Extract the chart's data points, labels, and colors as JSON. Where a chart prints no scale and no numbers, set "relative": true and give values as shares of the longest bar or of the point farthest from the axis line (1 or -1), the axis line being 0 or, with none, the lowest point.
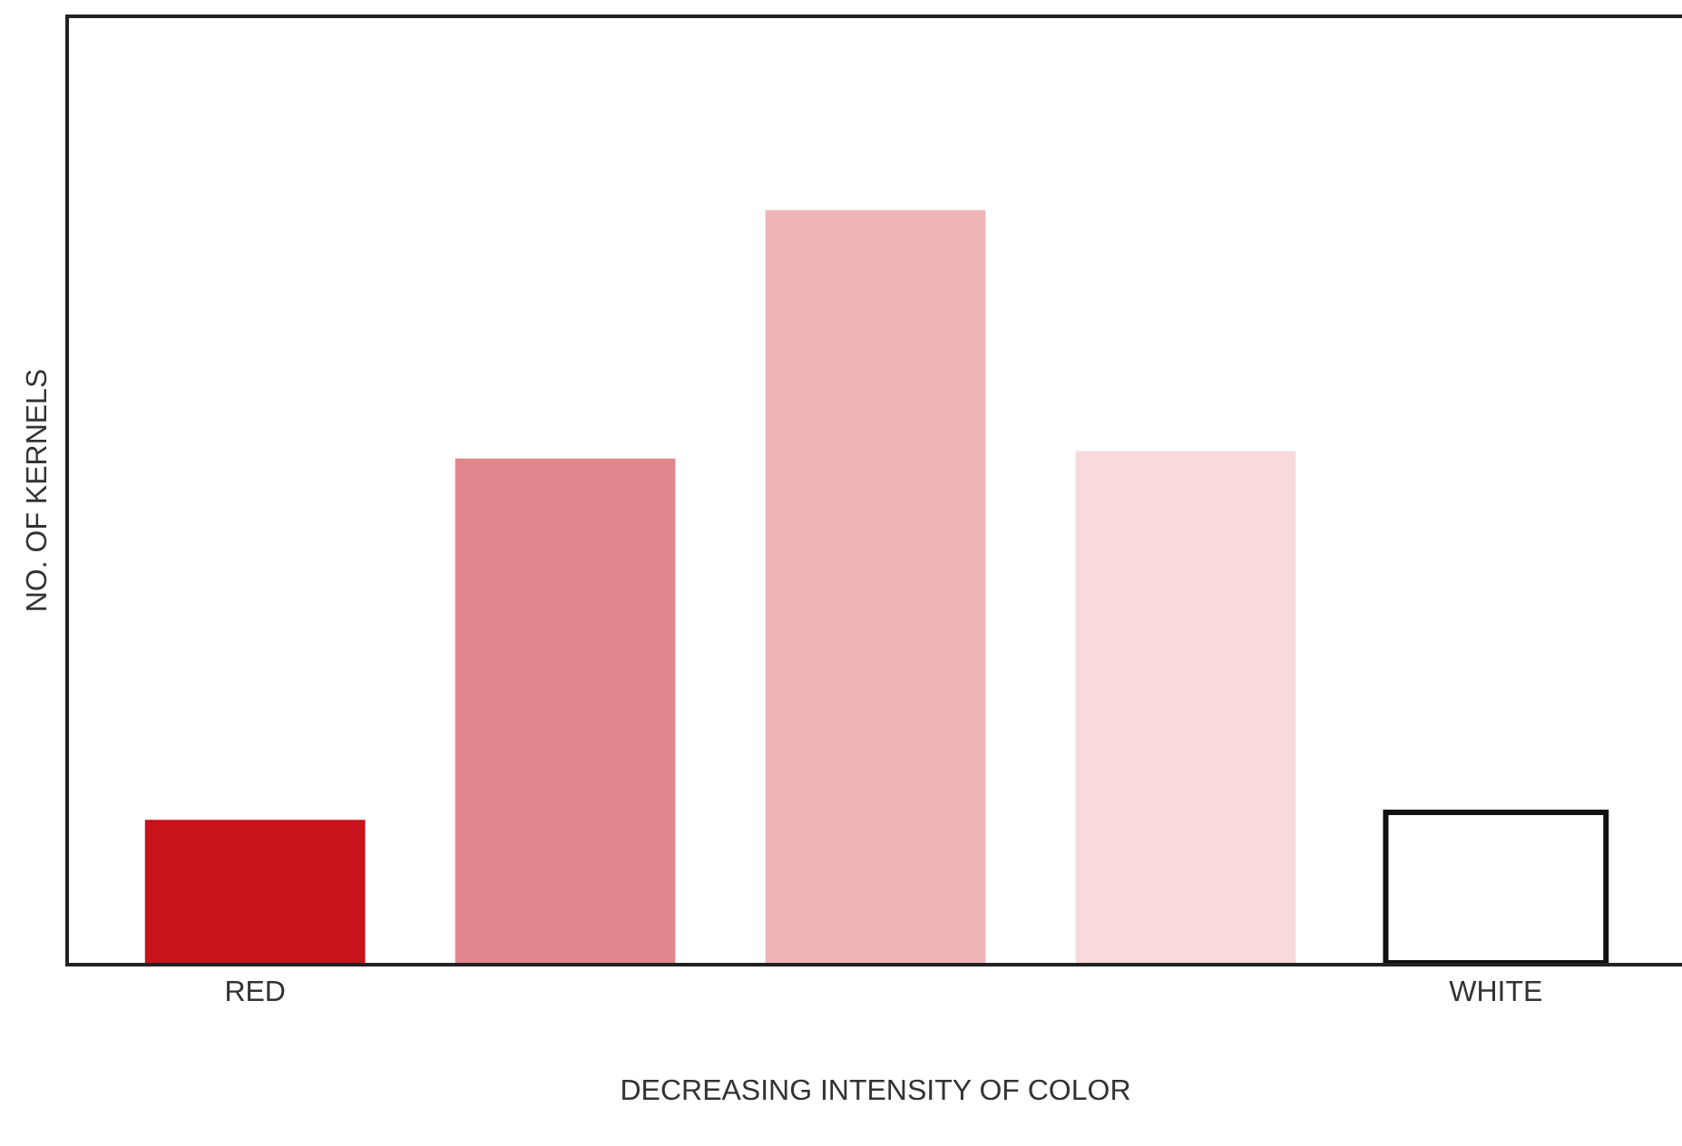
{
  "chart_data": {
    "type": "bar",
    "relative": true,
    "xlabel": "DECREASING INTENSITY OF COLOR",
    "ylabel": "NO. OF KERNELS",
    "categories": [
      "RED",
      null,
      null,
      null,
      "WHITE"
    ],
    "values": [
      0.19,
      0.67,
      1,
      0.68,
      0.2
    ],
    "colors": [
      "#c8121c",
      "#e0878d",
      "#f0b5b9",
      "#f8dadc",
      "#ffffff"
    ],
    "grid": false,
    "legend": false
  }
}
